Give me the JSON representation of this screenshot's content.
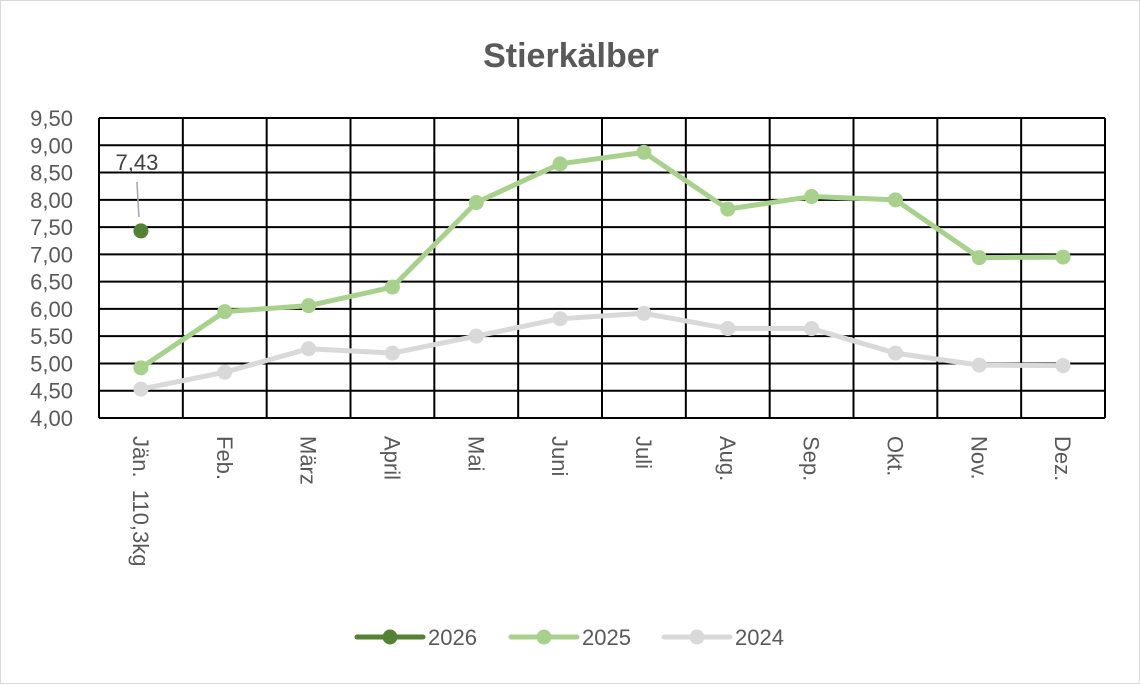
{
  "chart_data": {
    "type": "line",
    "title": "Stierkälber",
    "categories": [
      "Jän.  110,3kg",
      "Feb.",
      "März",
      "April",
      "Mai",
      "Juni",
      "Juli",
      "Aug.",
      "Sep.",
      "Okt.",
      "Nov.",
      "Dez."
    ],
    "ylim": [
      4.0,
      9.5
    ],
    "yticks": [
      "4,00",
      "4,50",
      "5,00",
      "5,50",
      "6,00",
      "6,50",
      "7,00",
      "7,50",
      "8,00",
      "8,50",
      "9,00",
      "9,50"
    ],
    "grid": true,
    "legend_position": "bottom",
    "series": [
      {
        "name": "2026",
        "color": "#548235",
        "values": [
          7.43,
          null,
          null,
          null,
          null,
          null,
          null,
          null,
          null,
          null,
          null,
          null
        ],
        "labels": [
          "7,43"
        ]
      },
      {
        "name": "2025",
        "color": "#a9d18e",
        "values": [
          4.92,
          5.95,
          6.06,
          6.4,
          7.95,
          8.66,
          8.87,
          7.83,
          8.06,
          8.0,
          6.94,
          6.95
        ]
      },
      {
        "name": "2024",
        "color": "#d9d9d9",
        "values": [
          4.53,
          4.84,
          5.27,
          5.19,
          5.5,
          5.82,
          5.92,
          5.64,
          5.64,
          5.19,
          4.97,
          4.96
        ]
      }
    ]
  }
}
